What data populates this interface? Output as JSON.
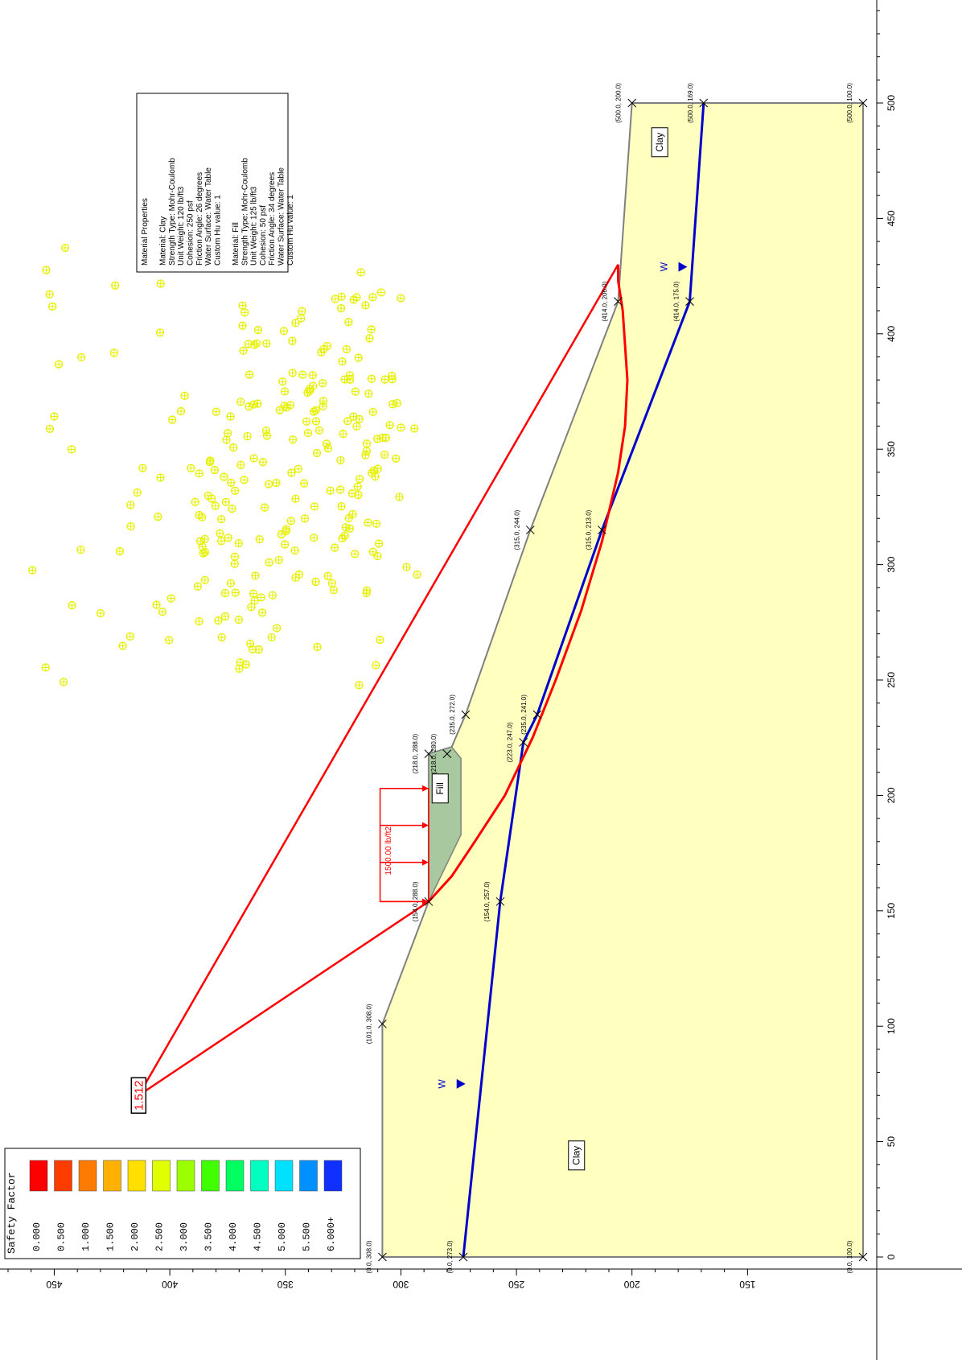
{
  "legend": {
    "title": "Safety Factor",
    "labels": [
      "0.000",
      "0.500",
      "1.000",
      "1.500",
      "2.000",
      "2.500",
      "3.000",
      "3.500",
      "4.000",
      "4.500",
      "5.000",
      "5.500",
      "6.000+"
    ],
    "colors": [
      "#ff0000",
      "#ff3c00",
      "#ff7a00",
      "#ffb000",
      "#ffe000",
      "#e0ff00",
      "#9cff00",
      "#40ff00",
      "#00ff60",
      "#00ffc0",
      "#00e0ff",
      "#0090ff",
      "#1030ff"
    ]
  },
  "colors": {
    "clay_fill": "#ffffc0",
    "fill_material": "#a8c8a0",
    "slip_surface": "#ff0000",
    "water_table": "#0000cc",
    "trial_surfaces": "#e6f000",
    "grid_points": "#e6f000",
    "boundary": "#808080"
  },
  "material_properties": {
    "heading": "Material Properties",
    "clay": [
      "Material: Clay",
      "Strength Type: Mohr-Coulomb",
      "Unit Weight: 120 lb/ft3",
      "Cohesion: 250 psf",
      "Friction Angle: 26 degrees",
      "Water Surface: Water Table",
      "Custom Hu value: 1"
    ],
    "fill": [
      "Material: Fill",
      "Strength Type: Mohr-Coulomb",
      "Unit Weight: 125 lb/ft3",
      "Cohesion: 50 psf",
      "Friction Angle: 34 degrees",
      "Water Surface: Water Table",
      "Custom Hu value: 1"
    ]
  },
  "min_safety_factor": "1.512",
  "load_label": "1500.00 lb/ft2",
  "material_labels": {
    "clay_left": "Clay",
    "clay_right": "Clay",
    "fill": "Fill"
  },
  "water_label": "W",
  "x_axis": {
    "ticks": [
      0,
      50,
      100,
      150,
      200,
      250,
      300,
      350,
      400,
      450,
      500
    ]
  },
  "y_axis": {
    "ticks": [
      "150",
      "200",
      "250",
      "300",
      "350",
      "400",
      "450"
    ]
  },
  "geometry": {
    "external_boundary": [
      [
        0,
        100
      ],
      [
        0,
        308
      ],
      [
        101,
        308
      ],
      [
        154,
        288
      ],
      [
        218,
        288
      ],
      [
        221,
        278
      ],
      [
        235,
        272
      ],
      [
        315,
        244
      ],
      [
        414,
        206
      ],
      [
        500,
        200
      ],
      [
        500,
        100
      ]
    ],
    "fill_region": [
      [
        154,
        288
      ],
      [
        218,
        288
      ],
      [
        221,
        278
      ],
      [
        216,
        274
      ],
      [
        183,
        274
      ]
    ],
    "water_table": [
      [
        0,
        273
      ],
      [
        154,
        257
      ],
      [
        223,
        247
      ],
      [
        235,
        241
      ],
      [
        315,
        213
      ],
      [
        414,
        175
      ],
      [
        500,
        169
      ]
    ],
    "slip_surface": [
      [
        154,
        288
      ],
      [
        165,
        278
      ],
      [
        180,
        268
      ],
      [
        200,
        255
      ],
      [
        225,
        243
      ],
      [
        250,
        233
      ],
      [
        280,
        222
      ],
      [
        310,
        213
      ],
      [
        340,
        206
      ],
      [
        360,
        203
      ],
      [
        380,
        202
      ],
      [
        395,
        203
      ],
      [
        410,
        204
      ],
      [
        423,
        206
      ],
      [
        430,
        206
      ]
    ],
    "slip_center": [
      70,
      413.5
    ]
  },
  "vertex_labels": [
    {
      "x": 0,
      "y": 308,
      "text": "(0.0, 308.0)"
    },
    {
      "x": 0,
      "y": 273,
      "text": "(0.0, 273.0)"
    },
    {
      "x": 0,
      "y": 100,
      "text": "(0.0, 100.0)"
    },
    {
      "x": 101,
      "y": 308,
      "text": "(101.0, 308.0)"
    },
    {
      "x": 154,
      "y": 288,
      "text": "(154.0, 288.0)"
    },
    {
      "x": 154,
      "y": 257,
      "text": "(154.0, 257.0)"
    },
    {
      "x": 218,
      "y": 288,
      "text": "(218.0, 288.0)"
    },
    {
      "x": 218,
      "y": 280,
      "text": "(218.0, 280.0)"
    },
    {
      "x": 223,
      "y": 247,
      "text": "(223.0, 247.0)"
    },
    {
      "x": 235,
      "y": 272,
      "text": "(235.0, 272.0)"
    },
    {
      "x": 235,
      "y": 241,
      "text": "(235.0, 241.0)"
    },
    {
      "x": 315,
      "y": 244,
      "text": "(315.0, 244.0)"
    },
    {
      "x": 315,
      "y": 213,
      "text": "(315.0, 213.0)"
    },
    {
      "x": 414,
      "y": 206,
      "text": "(414.0, 206.0)"
    },
    {
      "x": 414,
      "y": 175,
      "text": "(414.0, 175.0)"
    },
    {
      "x": 500,
      "y": 200,
      "text": "(500.0, 200.0)"
    },
    {
      "x": 500,
      "y": 169,
      "text": "(500.0, 169.0)"
    },
    {
      "x": 500,
      "y": 100,
      "text": "(500.0, 100.0)"
    }
  ]
}
